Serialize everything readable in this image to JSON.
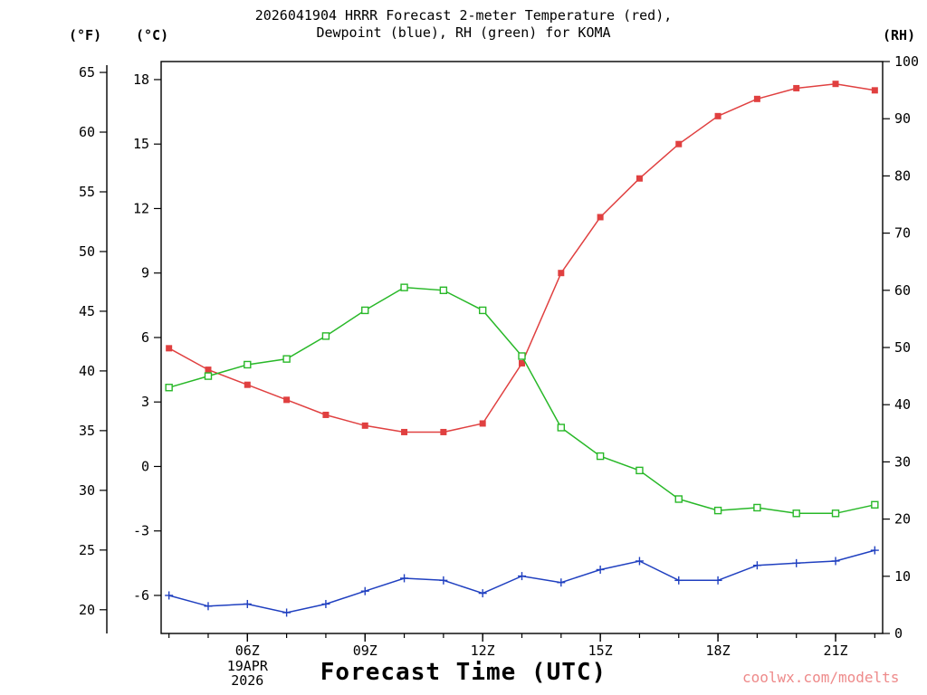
{
  "chart_data": {
    "type": "line",
    "title_line1": "2026041904 HRRR Forecast 2-meter Temperature (red),",
    "title_line2": "Dewpoint (blue), RH (green) for KOMA",
    "xlabel": "Forecast Time (UTC)",
    "watermark": "coolwx.com/modelts",
    "station": "KOMA",
    "model": "HRRR",
    "run": "2026041904",
    "x_hours": [
      4,
      5,
      6,
      7,
      8,
      9,
      10,
      11,
      12,
      13,
      14,
      15,
      16,
      17,
      18,
      19,
      20,
      21,
      22
    ],
    "x_range": [
      3.8,
      22.2
    ],
    "x_ticks": [
      {
        "hour": 6,
        "label": "06Z",
        "sub": [
          "19APR",
          "2026"
        ]
      },
      {
        "hour": 9,
        "label": "09Z"
      },
      {
        "hour": 12,
        "label": "12Z"
      },
      {
        "hour": 15,
        "label": "15Z"
      },
      {
        "hour": 18,
        "label": "18Z"
      },
      {
        "hour": 21,
        "label": "21Z"
      }
    ],
    "temp_axis": {
      "label": "(°C)",
      "range": [
        -7.77,
        18.84
      ],
      "ticks": [
        -6,
        -3,
        0,
        3,
        6,
        9,
        12,
        15,
        18
      ]
    },
    "f_axis": {
      "label": "(°F)",
      "ticks": [
        20,
        25,
        30,
        35,
        40,
        45,
        50,
        55,
        60,
        65
      ]
    },
    "rh_axis": {
      "label": "(RH)",
      "range": [
        0,
        100
      ],
      "ticks": [
        0,
        10,
        20,
        30,
        40,
        50,
        60,
        70,
        80,
        90,
        100
      ]
    },
    "grid": false,
    "legend_position": "in-title",
    "series": [
      {
        "name": "temperature",
        "legend": "2-meter Temperature (red)",
        "color": "#e04040",
        "marker": "square-filled",
        "axis": "temp",
        "values": [
          5.5,
          4.5,
          3.8,
          3.1,
          2.4,
          1.9,
          1.6,
          1.6,
          2.0,
          4.8,
          9.0,
          11.6,
          13.4,
          15.0,
          16.3,
          17.1,
          17.6,
          17.8,
          17.5
        ]
      },
      {
        "name": "dewpoint",
        "legend": "Dewpoint (blue)",
        "color": "#2040c0",
        "marker": "plus",
        "axis": "temp",
        "values": [
          -6.0,
          -6.5,
          -6.4,
          -6.8,
          -6.4,
          -5.8,
          -5.2,
          -5.3,
          -5.9,
          -5.1,
          -5.4,
          -4.8,
          -4.4,
          -5.3,
          -5.3,
          -4.6,
          -4.5,
          -4.4,
          -3.9
        ]
      },
      {
        "name": "relative-humidity",
        "legend": "RH (green)",
        "color": "#28b828",
        "marker": "square-open",
        "axis": "rh",
        "values": [
          43,
          45,
          47,
          48,
          52,
          56.5,
          60.5,
          60,
          56.5,
          48.5,
          36,
          31,
          28.5,
          23.5,
          21.5,
          22,
          21,
          21,
          22.5
        ]
      }
    ]
  }
}
